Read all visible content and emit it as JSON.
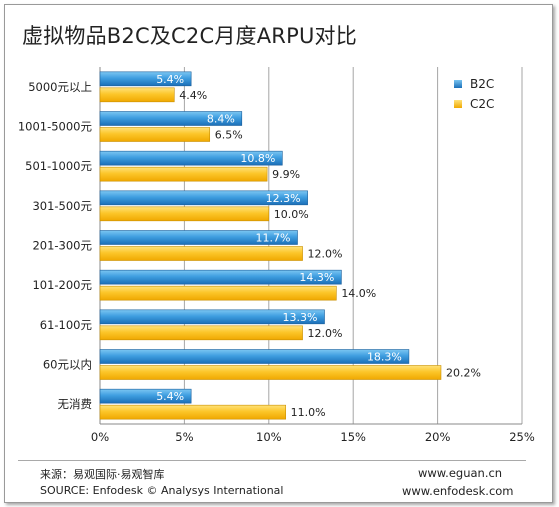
{
  "title": "虚拟物品B2C及C2C月度ARPU对比",
  "footer": {
    "source_cn": "来源：易观国际·易观智库",
    "source_en": "SOURCE: Enfodesk © Analysys International",
    "url1": "www.eguan.cn",
    "url2": "www.enfodesk.com"
  },
  "colors": {
    "b2c": "#2e86d0",
    "c2c": "#f6c01a",
    "grid": "#a6a6a6"
  },
  "chart_data": {
    "type": "bar",
    "orientation": "horizontal",
    "title": "虚拟物品B2C及C2C月度ARPU对比",
    "categories": [
      "5000元以上",
      "1001-5000元",
      "501-1000元",
      "301-500元",
      "201-300元",
      "101-200元",
      "61-100元",
      "60元以内",
      "无消费"
    ],
    "series": [
      {
        "name": "B2C",
        "values": [
          5.4,
          8.4,
          10.8,
          12.3,
          11.7,
          14.3,
          13.3,
          18.3,
          5.4
        ],
        "labels": [
          "5.4%",
          "8.4%",
          "10.8%",
          "12.3%",
          "11.7%",
          "14.3%",
          "13.3%",
          "18.3%",
          "5.4%"
        ]
      },
      {
        "name": "C2C",
        "values": [
          4.4,
          6.5,
          9.9,
          10.0,
          12.0,
          14.0,
          12.0,
          20.2,
          11.0
        ],
        "labels": [
          "4.4%",
          "6.5%",
          "9.9%",
          "10.0%",
          "12.0%",
          "14.0%",
          "12.0%",
          "20.2%",
          "11.0%"
        ]
      }
    ],
    "xlim": [
      0,
      25
    ],
    "xticks": [
      "0%",
      "5%",
      "10%",
      "15%",
      "20%",
      "25%"
    ],
    "grid": true,
    "legend": "top-right"
  }
}
